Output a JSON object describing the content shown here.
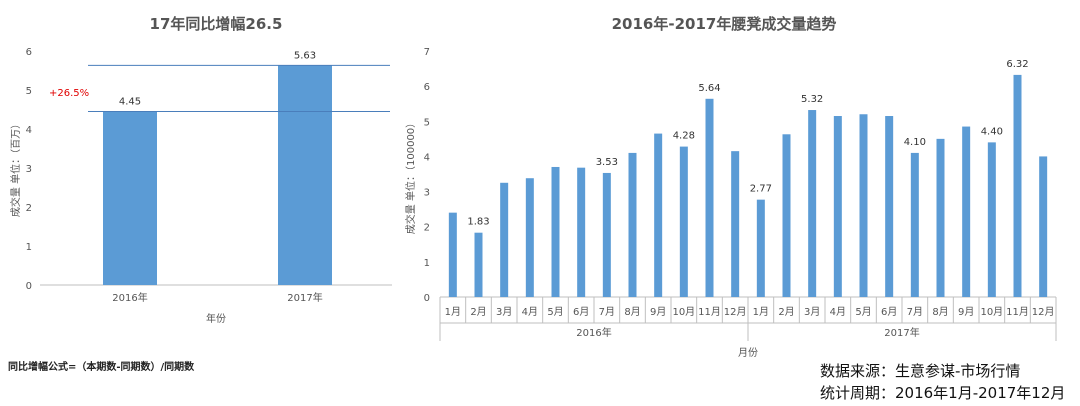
{
  "chart_data": [
    {
      "type": "bar",
      "title": "17年同比增幅26.5",
      "categories": [
        "2016年",
        "2017年"
      ],
      "values": [
        4.45,
        5.63
      ],
      "data_labels": [
        "4.45",
        "5.63"
      ],
      "xlabel": "年份",
      "ylabel": "成交量  单位：（百万）",
      "ylim": [
        0,
        6
      ],
      "yticks": [
        "0",
        "1",
        "2",
        "3",
        "4",
        "5",
        "6"
      ],
      "annotation": "+26.5%",
      "grid": false,
      "color": "#5b9bd5"
    },
    {
      "type": "bar",
      "title": "2016年-2017年腰凳成交量趋势",
      "months": [
        "1月",
        "2月",
        "3月",
        "4月",
        "5月",
        "6月",
        "7月",
        "8月",
        "9月",
        "10月",
        "11月",
        "12月"
      ],
      "groups": [
        "2016年",
        "2017年"
      ],
      "values": [
        [
          2.4,
          1.83,
          3.25,
          3.38,
          3.7,
          3.68,
          3.53,
          4.1,
          4.65,
          4.28,
          5.64,
          4.15
        ],
        [
          2.77,
          4.63,
          5.32,
          5.15,
          5.2,
          5.15,
          4.1,
          4.5,
          4.85,
          4.4,
          6.32,
          4.0
        ]
      ],
      "data_labels": [
        [
          "",
          "1.83",
          "",
          "",
          "",
          "",
          "3.53",
          "",
          "",
          "4.28",
          "5.64",
          ""
        ],
        [
          "2.77",
          "",
          "5.32",
          "",
          "",
          "",
          "4.10",
          "",
          "",
          "4.40",
          "6.32",
          ""
        ]
      ],
      "xlabel": "月份",
      "ylabel": "成交量  单位：（100000）",
      "ylim": [
        0,
        7
      ],
      "yticks": [
        "0",
        "1",
        "2",
        "3",
        "4",
        "5",
        "6",
        "7"
      ],
      "grid": false,
      "color": "#5b9bd5"
    }
  ],
  "footnote": "同比增幅公式=（本期数-同期数）/同期数",
  "source_lines": [
    "数据来源：生意参谋-市场行情",
    "统计周期：2016年1月-2017年12月"
  ]
}
